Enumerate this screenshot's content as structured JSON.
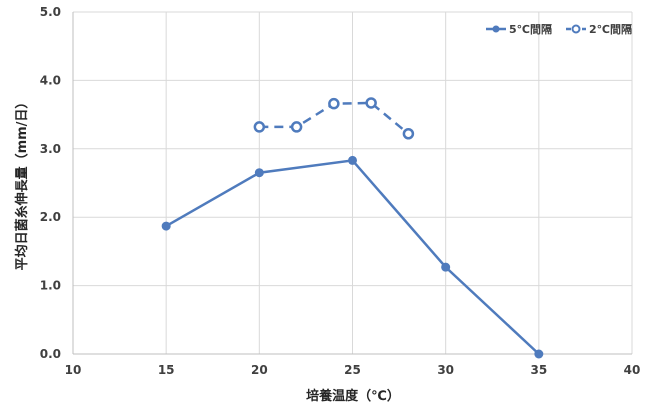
{
  "chart_data": {
    "type": "line",
    "title": "",
    "xlabel": "培養温度（℃）",
    "ylabel": "平均日菌糸伸長量（mm/日）",
    "xlim": [
      10,
      40
    ],
    "ylim": [
      0,
      5
    ],
    "x_ticks": [
      "10",
      "15",
      "20",
      "25",
      "30",
      "35",
      "40"
    ],
    "y_ticks": [
      "0.0",
      "1.0",
      "2.0",
      "3.0",
      "4.0",
      "5.0"
    ],
    "grid": true,
    "legend_position": "top-right",
    "series": [
      {
        "name": "5℃間隔",
        "style": "solid",
        "marker": "filled-circle",
        "color": "#4f7bbd",
        "x": [
          15,
          20,
          25,
          30,
          35
        ],
        "y": [
          1.87,
          2.65,
          2.83,
          1.27,
          0.0
        ]
      },
      {
        "name": "2℃間隔",
        "style": "dashed",
        "marker": "open-circle",
        "color": "#4f7bbd",
        "x": [
          20,
          22,
          24,
          26,
          28
        ],
        "y": [
          3.32,
          3.32,
          3.66,
          3.67,
          3.22
        ]
      }
    ]
  }
}
